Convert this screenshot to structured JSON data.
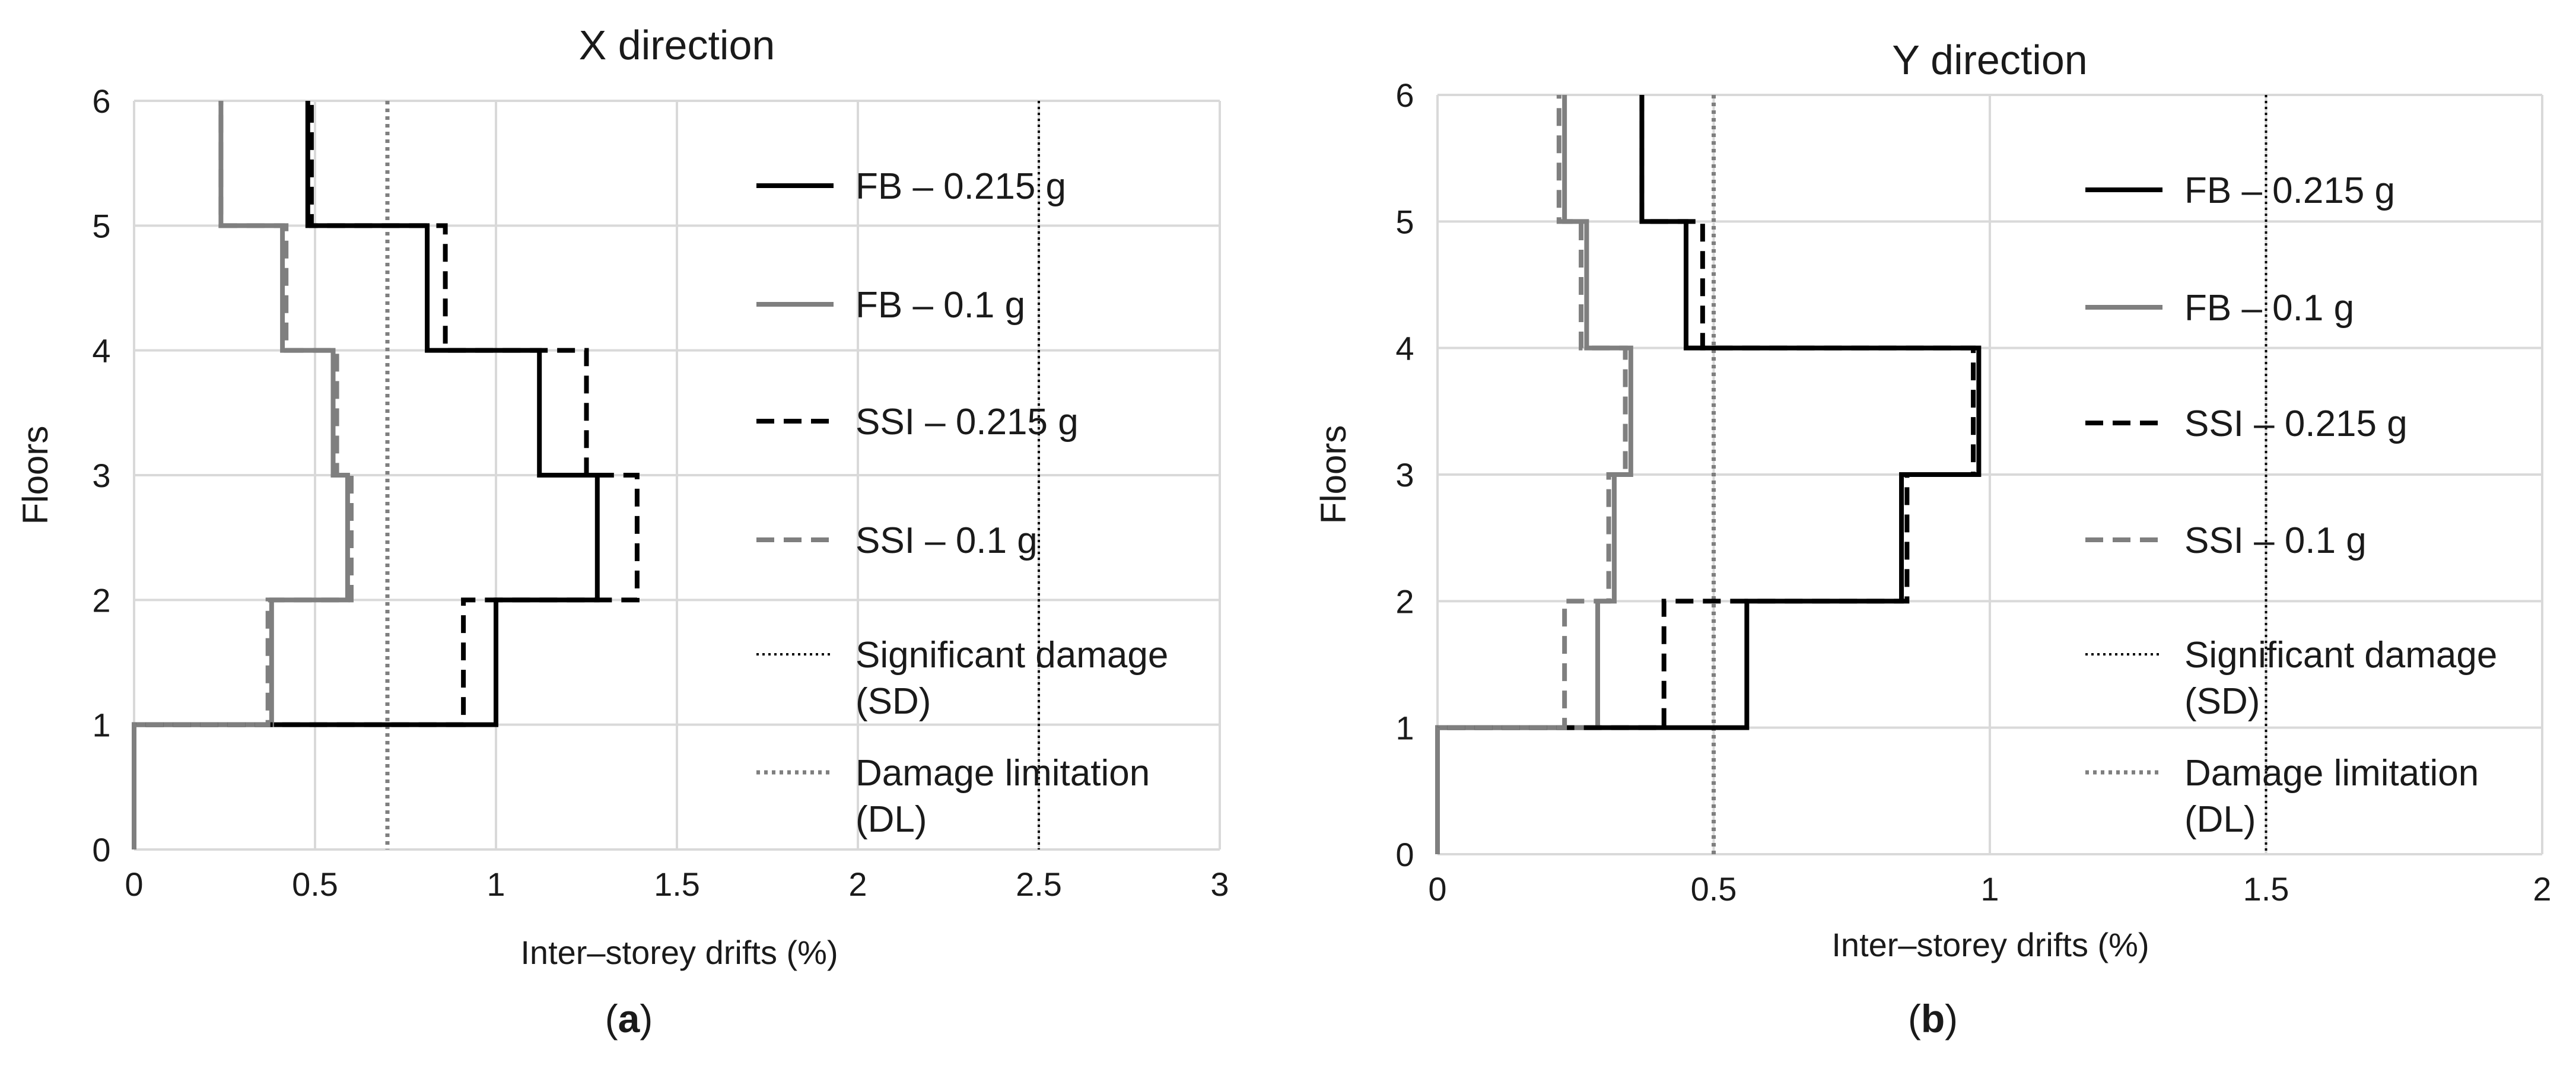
{
  "chart_data": [
    {
      "type": "line",
      "panel_label": "a",
      "title": "X direction",
      "xlabel": "Inter–storey drifts (%)",
      "ylabel": "Floors",
      "xlim": [
        0,
        3
      ],
      "ylim": [
        0,
        6
      ],
      "xticks": [
        "0",
        "0.5",
        "1",
        "1.5",
        "2",
        "2.5",
        "3"
      ],
      "yticks": [
        "0",
        "1",
        "2",
        "3",
        "4",
        "5",
        "6"
      ],
      "grid": true,
      "legend_position": "right",
      "series": [
        {
          "name": "FB – 0.215 g",
          "style": "solid",
          "color": "#000000",
          "drifts": [
            1.0,
            1.28,
            1.12,
            0.81,
            0.48
          ]
        },
        {
          "name": "FB – 0.1 g",
          "style": "solid",
          "color": "#7f7f7f",
          "drifts": [
            0.38,
            0.59,
            0.55,
            0.41,
            0.24
          ]
        },
        {
          "name": "SSI – 0.215 g",
          "style": "dashed",
          "color": "#000000",
          "drifts": [
            0.91,
            1.39,
            1.25,
            0.86,
            0.49
          ]
        },
        {
          "name": "SSI – 0.1 g",
          "style": "dashed",
          "color": "#7f7f7f",
          "drifts": [
            0.37,
            0.6,
            0.56,
            0.42,
            0.24
          ]
        }
      ],
      "limits": [
        {
          "name_lines": [
            "Significant damage",
            "(SD)"
          ],
          "value": 2.5,
          "style": "dotted",
          "color": "#000000"
        },
        {
          "name_lines": [
            "Damage limitation",
            "(DL)"
          ],
          "value": 0.7,
          "style": "dotted",
          "color": "#7f7f7f"
        }
      ]
    },
    {
      "type": "line",
      "panel_label": "b",
      "title": "Y direction",
      "xlabel": "Inter–storey drifts (%)",
      "ylabel": "Floors",
      "xlim": [
        0,
        2
      ],
      "ylim": [
        0,
        6
      ],
      "xticks": [
        "0",
        "0.5",
        "1",
        "1.5",
        "2"
      ],
      "yticks": [
        "0",
        "1",
        "2",
        "3",
        "4",
        "5",
        "6"
      ],
      "grid": true,
      "legend_position": "right",
      "series": [
        {
          "name": "FB – 0.215 g",
          "style": "solid",
          "color": "#000000",
          "drifts": [
            0.56,
            0.84,
            0.98,
            0.45,
            0.37
          ]
        },
        {
          "name": "FB – 0.1 g",
          "style": "solid",
          "color": "#7f7f7f",
          "drifts": [
            0.29,
            0.32,
            0.35,
            0.27,
            0.23
          ]
        },
        {
          "name": "SSI – 0.215 g",
          "style": "dashed",
          "color": "#000000",
          "drifts": [
            0.41,
            0.85,
            0.97,
            0.48,
            0.37
          ]
        },
        {
          "name": "SSI – 0.1 g",
          "style": "dashed",
          "color": "#7f7f7f",
          "drifts": [
            0.23,
            0.31,
            0.34,
            0.26,
            0.22
          ]
        }
      ],
      "limits": [
        {
          "name_lines": [
            "Significant damage",
            "(SD)"
          ],
          "value": 1.5,
          "style": "dotted",
          "color": "#000000"
        },
        {
          "name_lines": [
            "Damage limitation",
            "(DL)"
          ],
          "value": 0.5,
          "style": "dotted",
          "color": "#7f7f7f"
        }
      ]
    }
  ]
}
